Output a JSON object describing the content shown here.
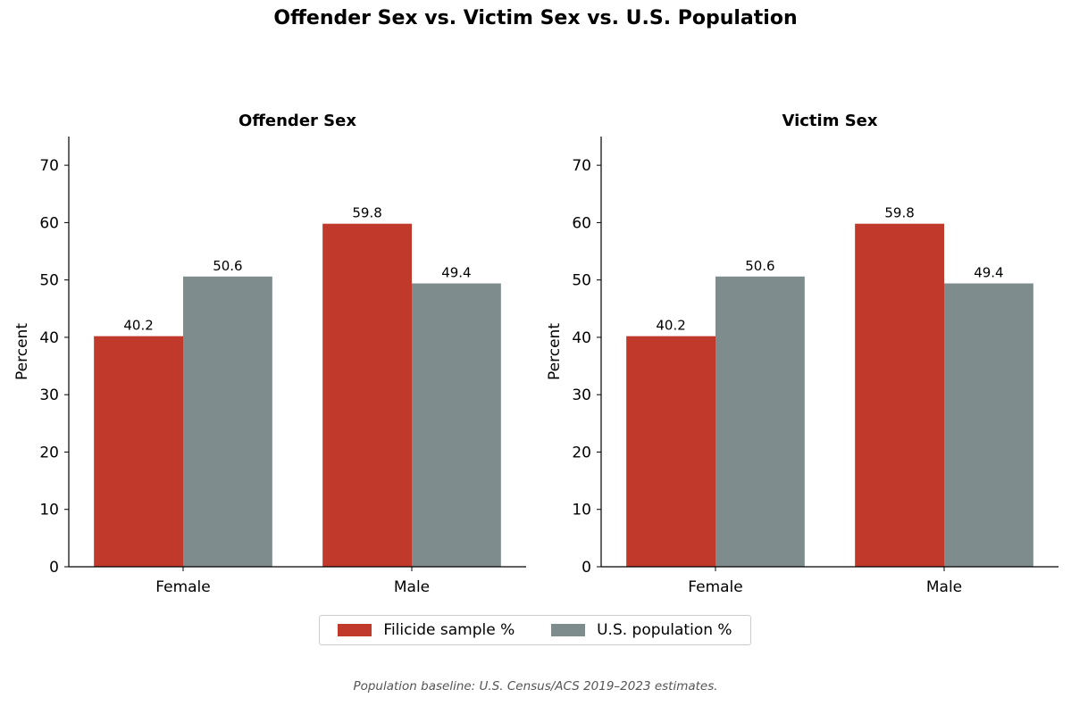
{
  "title": "Offender Sex vs. Victim Sex vs. U.S. Population",
  "colors": {
    "filicide": "#c0392b",
    "population": "#7f8c8d"
  },
  "legend": [
    {
      "label": "Filicide sample %",
      "color": "#c0392b"
    },
    {
      "label": "U.S. population %",
      "color": "#7f8c8d"
    }
  ],
  "footnote": "Population baseline: U.S. Census/ACS 2019–2023 estimates.",
  "chart_data": [
    {
      "type": "bar",
      "title": "Offender Sex",
      "ylabel": "Percent",
      "xlabel": "",
      "categories": [
        "Female",
        "Male"
      ],
      "series": [
        {
          "name": "Filicide sample %",
          "values": [
            40.2,
            59.8
          ]
        },
        {
          "name": "U.S. population %",
          "values": [
            50.6,
            49.4
          ]
        }
      ],
      "ylim": [
        0,
        75
      ],
      "yticks": [
        0,
        10,
        20,
        30,
        40,
        50,
        60,
        70
      ],
      "data_labels": true,
      "grid": false
    },
    {
      "type": "bar",
      "title": "Victim Sex",
      "ylabel": "Percent",
      "xlabel": "",
      "categories": [
        "Female",
        "Male"
      ],
      "series": [
        {
          "name": "Filicide sample %",
          "values": [
            40.2,
            59.8
          ]
        },
        {
          "name": "U.S. population %",
          "values": [
            50.6,
            49.4
          ]
        }
      ],
      "ylim": [
        0,
        75
      ],
      "yticks": [
        0,
        10,
        20,
        30,
        40,
        50,
        60,
        70
      ],
      "data_labels": true,
      "grid": false
    }
  ]
}
